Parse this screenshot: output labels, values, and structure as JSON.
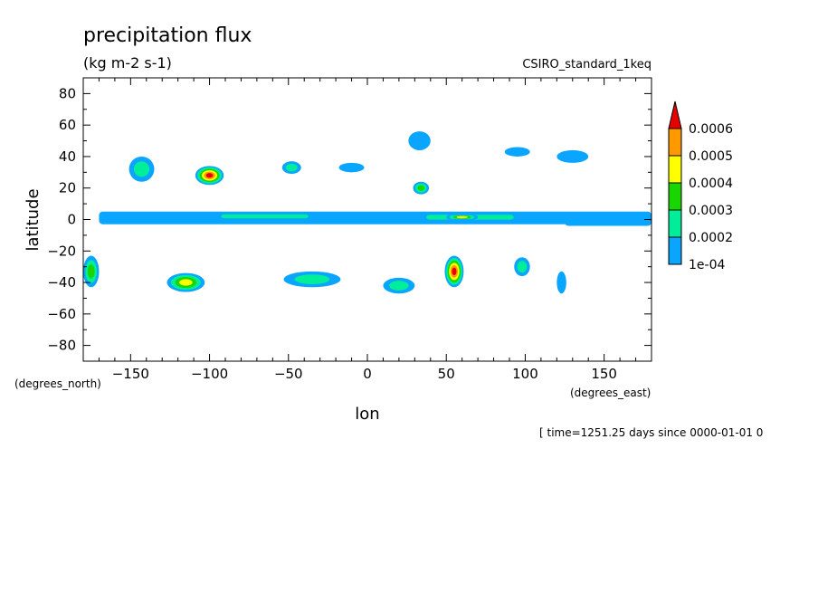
{
  "chart_data": {
    "type": "heatmap",
    "title": "precipitation flux",
    "units": "(kg m-2 s-1)",
    "dataset": "CSIRO_standard_1keq",
    "xlabel": "lon",
    "ylabel": "latitude",
    "x_units": "(degrees_east)",
    "y_units": "(degrees_north)",
    "footer": "[ time=1251.25 days since 0000-01-01 0",
    "xlim": [
      -180,
      180
    ],
    "ylim": [
      -90,
      90
    ],
    "x_ticks": [
      -150,
      -100,
      -50,
      0,
      50,
      100,
      150
    ],
    "y_ticks": [
      80,
      60,
      40,
      20,
      0,
      -20,
      -40,
      -60,
      -80
    ],
    "colorbar": {
      "levels": [
        "1e-04",
        "0.0002",
        "0.0003",
        "0.0004",
        "0.0005",
        "0.0006"
      ],
      "colors": [
        "#0aa5ff",
        "#00ee99",
        "#1ad600",
        "#ffff00",
        "#ff9900",
        "#e80000"
      ],
      "extend": "max"
    },
    "features": [
      {
        "kind": "band",
        "lon": [
          -170,
          180
        ],
        "lat": [
          -3,
          5
        ],
        "level": 1
      },
      {
        "kind": "band",
        "lon": [
          -110,
          -20
        ],
        "lat": [
          0,
          4
        ],
        "level": 2
      },
      {
        "kind": "band",
        "lon": [
          20,
          110
        ],
        "lat": [
          -1,
          4
        ],
        "level": 2
      },
      {
        "kind": "band",
        "lon": [
          50,
          70
        ],
        "lat": [
          0,
          3
        ],
        "level": 4
      },
      {
        "kind": "band",
        "lon": [
          125,
          180
        ],
        "lat": [
          -4,
          2
        ],
        "level": 1
      },
      {
        "kind": "blob",
        "lon": -143,
        "lat": 32,
        "rlon": 8,
        "rlat": 8,
        "level": 2
      },
      {
        "kind": "blob",
        "lon": -100,
        "lat": 28,
        "rlon": 9,
        "rlat": 6,
        "level": 6
      },
      {
        "kind": "blob",
        "lon": -48,
        "lat": 33,
        "rlon": 6,
        "rlat": 4,
        "level": 2
      },
      {
        "kind": "blob",
        "lon": 34,
        "lat": 20,
        "rlon": 5,
        "rlat": 4,
        "level": 3
      },
      {
        "kind": "blob",
        "lon": -115,
        "lat": -40,
        "rlon": 12,
        "rlat": 6,
        "level": 4
      },
      {
        "kind": "blob",
        "lon": -35,
        "lat": -38,
        "rlon": 18,
        "rlat": 5,
        "level": 2
      },
      {
        "kind": "blob",
        "lon": 20,
        "lat": -42,
        "rlon": 10,
        "rlat": 5,
        "level": 2
      },
      {
        "kind": "blob",
        "lon": 55,
        "lat": -33,
        "rlon": 6,
        "rlat": 10,
        "level": 6
      },
      {
        "kind": "blob",
        "lon": 98,
        "lat": -30,
        "rlon": 5,
        "rlat": 6,
        "level": 2
      },
      {
        "kind": "blob",
        "lon": -175,
        "lat": -33,
        "rlon": 5,
        "rlat": 10,
        "level": 3
      },
      {
        "kind": "blob",
        "lon": 130,
        "lat": 40,
        "rlon": 10,
        "rlat": 4,
        "level": 1
      },
      {
        "kind": "blob",
        "lon": 95,
        "lat": 43,
        "rlon": 8,
        "rlat": 3,
        "level": 1
      },
      {
        "kind": "blob",
        "lon": -10,
        "lat": 33,
        "rlon": 8,
        "rlat": 3,
        "level": 1
      },
      {
        "kind": "blob",
        "lon": 33,
        "lat": 50,
        "rlon": 7,
        "rlat": 6,
        "level": 1
      },
      {
        "kind": "blob",
        "lon": 123,
        "lat": -40,
        "rlon": 3,
        "rlat": 7,
        "level": 1
      }
    ]
  }
}
